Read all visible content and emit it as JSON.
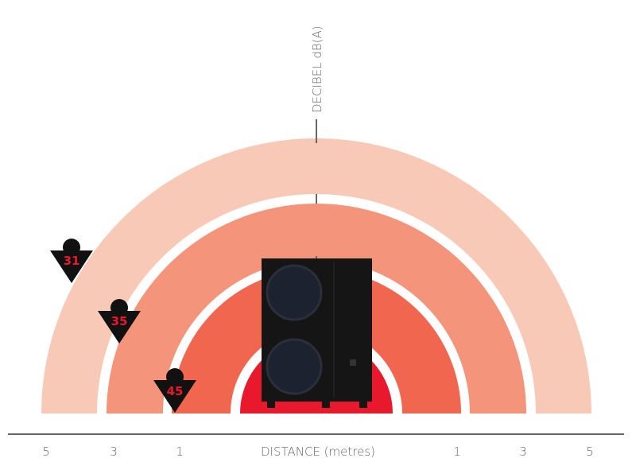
{
  "axis": {
    "vertical_label": "DECIBEL dB(A)",
    "horizontal_label": "DISTANCE (metres)",
    "distance_ticks_left": [
      "5",
      "3",
      "1"
    ],
    "distance_ticks_right": [
      "1",
      "3",
      "5"
    ]
  },
  "markers": [
    {
      "label": "31"
    },
    {
      "label": "35"
    },
    {
      "label": "45"
    }
  ]
}
